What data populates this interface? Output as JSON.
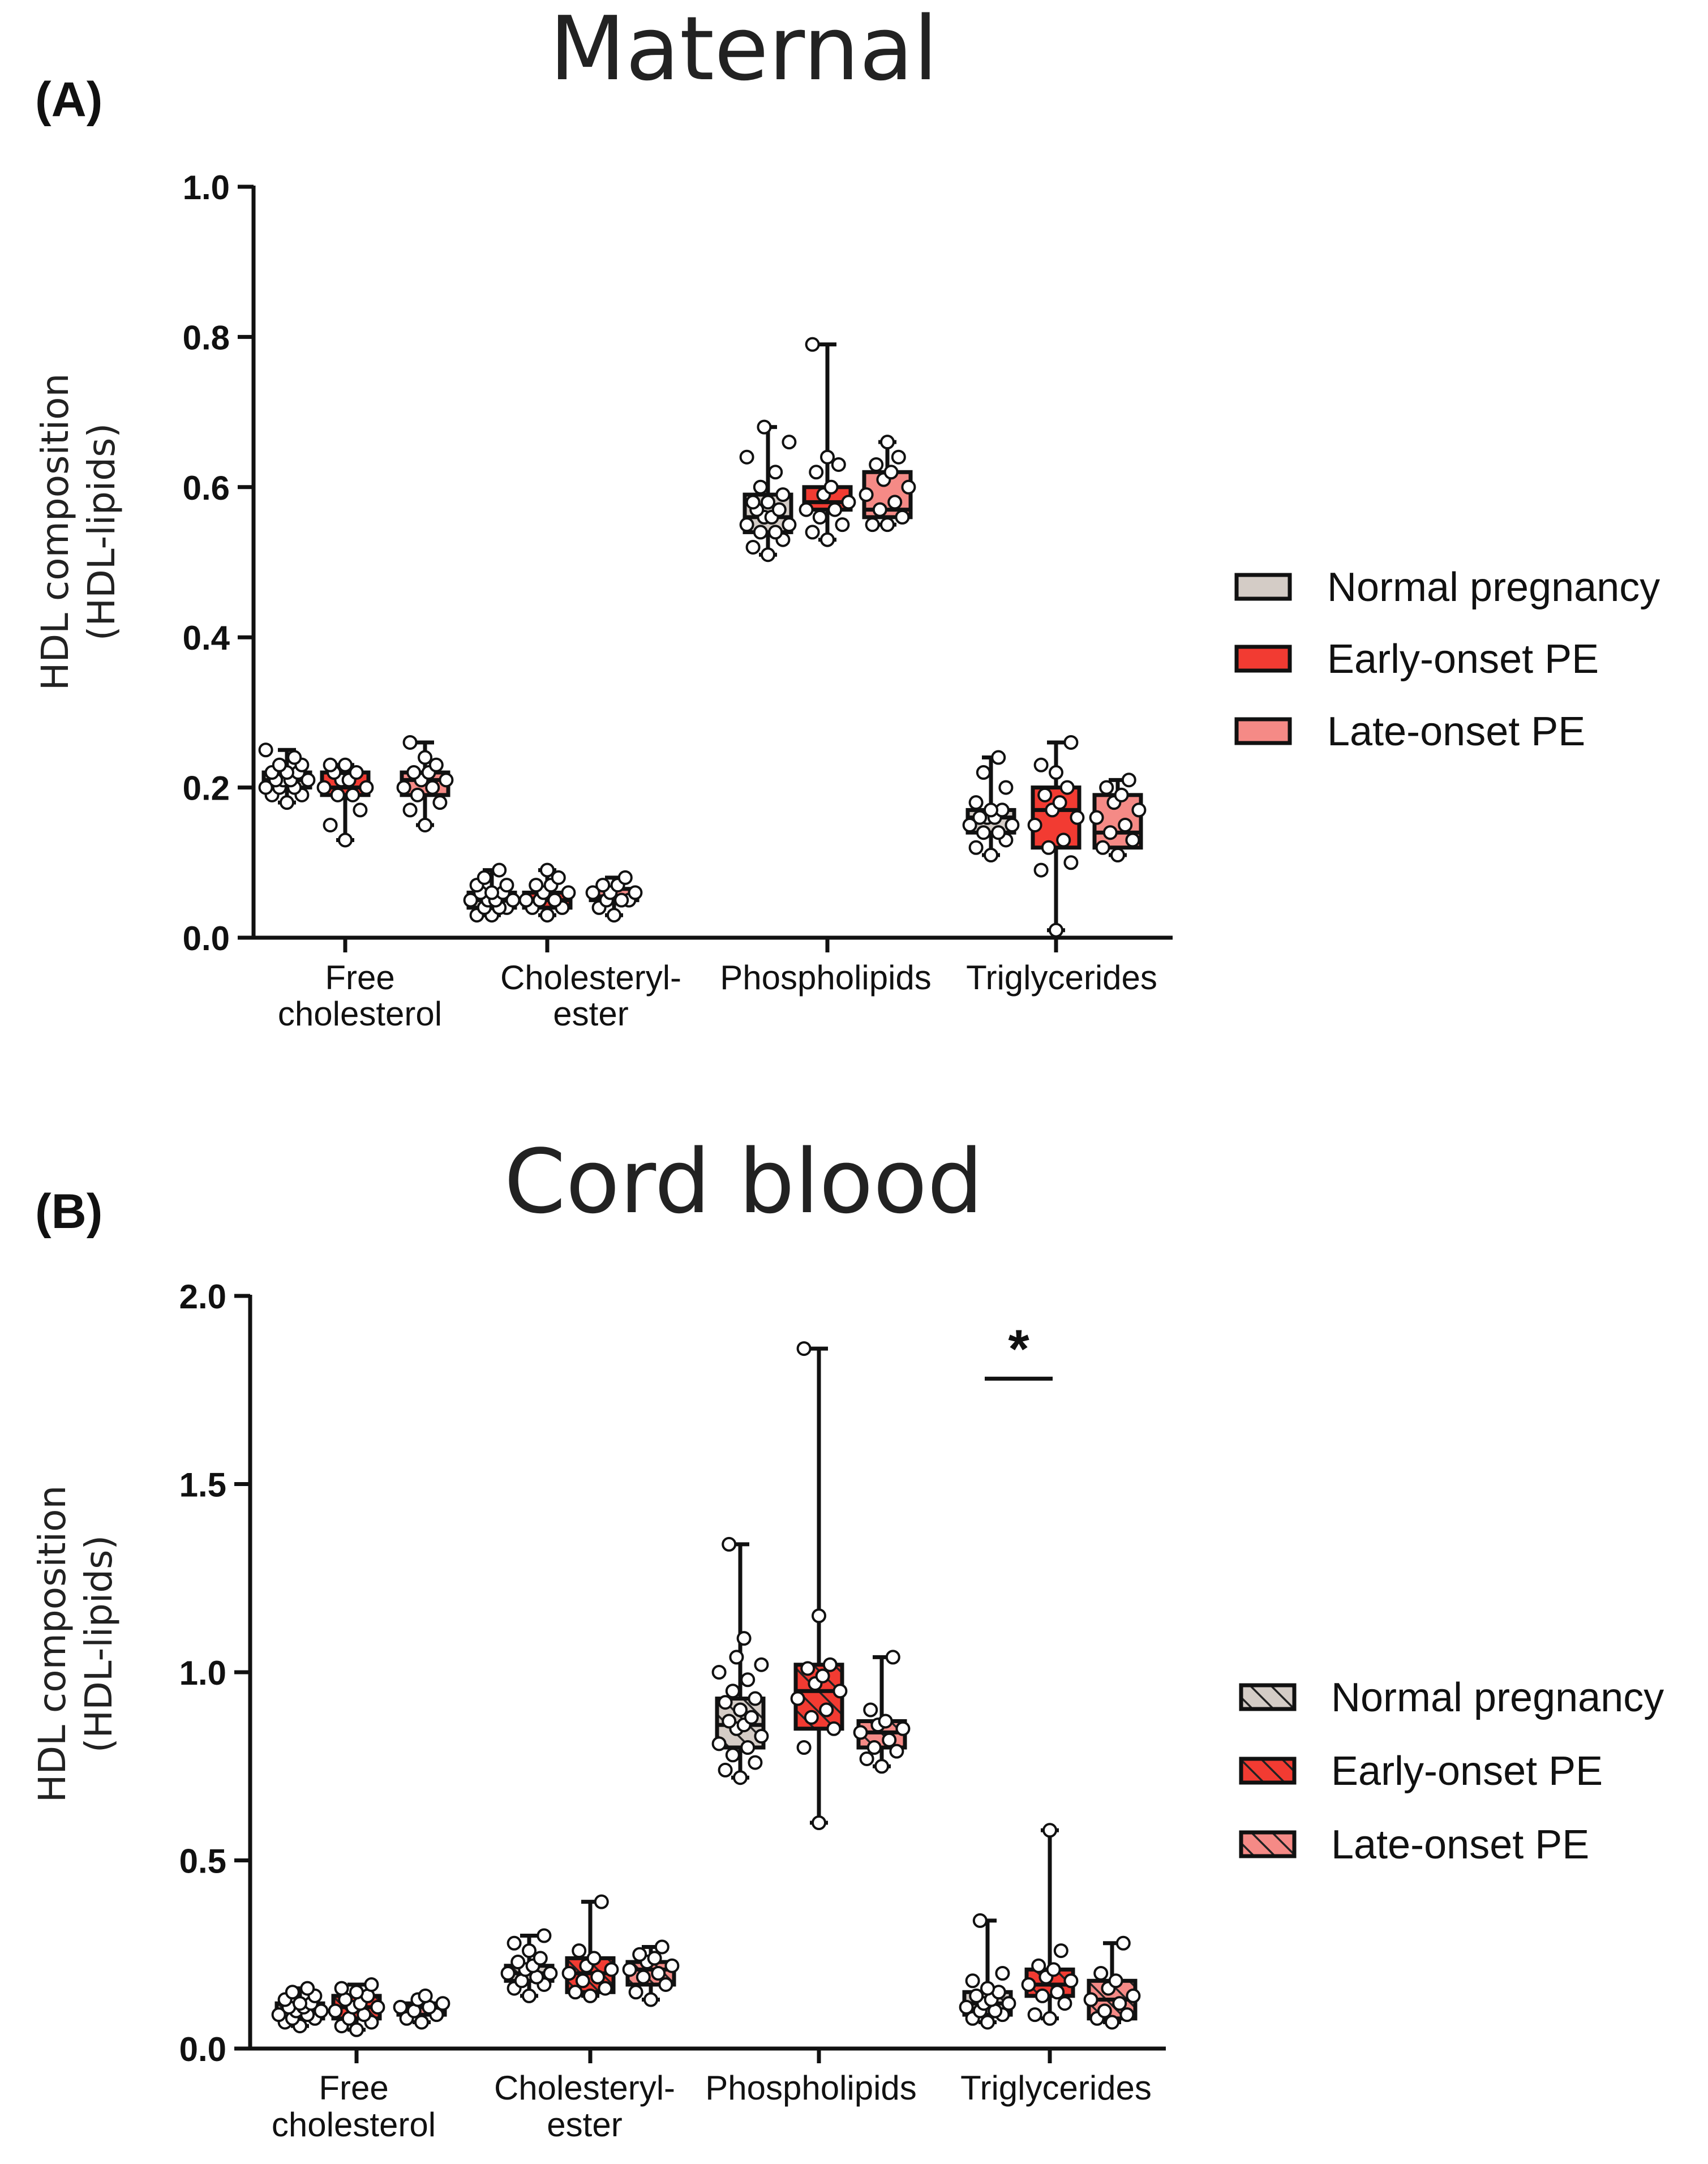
{
  "colors": {
    "normal": "#d4ccc6",
    "early": "#f23b32",
    "late": "#f58a86",
    "ink": "#111111"
  },
  "legend_icons": {
    "A": [
      "solid",
      "solid",
      "solid"
    ],
    "B": [
      "hatched",
      "hatched",
      "hatched"
    ]
  },
  "chart_data": [
    {
      "type": "box",
      "panel_label": "(A)",
      "title": "Maternal",
      "ylabel_line1": "HDL composition",
      "ylabel_line2": "(HDL-lipids)",
      "ylim": [
        0,
        1.0
      ],
      "yticks": [
        "0.0",
        "0.2",
        "0.4",
        "0.6",
        "0.8",
        "1.0"
      ],
      "yticks_values": [
        0,
        0.2,
        0.4,
        0.6,
        0.8,
        1.0
      ],
      "categories": [
        {
          "line1": "Free",
          "line2": "cholesterol"
        },
        {
          "line1": "Cholesteryl-",
          "line2": "ester"
        },
        {
          "line1": "Phospholipids",
          "line2": ""
        },
        {
          "line1": "Triglycerides",
          "line2": ""
        }
      ],
      "legend": [
        "Normal pregnancy",
        "Early-onset PE",
        "Late-onset PE"
      ],
      "hatched": false,
      "significance": null,
      "series": [
        {
          "name": "Normal pregnancy",
          "boxes": [
            {
              "min": 0.18,
              "q1": 0.2,
              "median": 0.21,
              "q3": 0.22,
              "max": 0.25,
              "points": [
                0.18,
                0.19,
                0.19,
                0.2,
                0.2,
                0.2,
                0.21,
                0.21,
                0.21,
                0.21,
                0.22,
                0.22,
                0.22,
                0.23,
                0.23,
                0.24,
                0.25
              ]
            },
            {
              "min": 0.03,
              "q1": 0.04,
              "median": 0.05,
              "q3": 0.06,
              "max": 0.09,
              "points": [
                0.03,
                0.03,
                0.04,
                0.04,
                0.04,
                0.05,
                0.05,
                0.05,
                0.05,
                0.06,
                0.06,
                0.06,
                0.07,
                0.07,
                0.08,
                0.09
              ]
            },
            {
              "min": 0.51,
              "q1": 0.54,
              "median": 0.56,
              "q3": 0.59,
              "max": 0.68,
              "points": [
                0.51,
                0.52,
                0.53,
                0.54,
                0.54,
                0.55,
                0.55,
                0.56,
                0.56,
                0.57,
                0.57,
                0.58,
                0.58,
                0.59,
                0.6,
                0.62,
                0.64,
                0.66,
                0.68
              ]
            },
            {
              "min": 0.11,
              "q1": 0.14,
              "median": 0.16,
              "q3": 0.17,
              "max": 0.24,
              "points": [
                0.11,
                0.12,
                0.13,
                0.14,
                0.14,
                0.15,
                0.15,
                0.16,
                0.16,
                0.16,
                0.17,
                0.17,
                0.18,
                0.2,
                0.22,
                0.24
              ]
            }
          ]
        },
        {
          "name": "Early-onset PE",
          "boxes": [
            {
              "min": 0.13,
              "q1": 0.19,
              "median": 0.2,
              "q3": 0.22,
              "max": 0.23,
              "points": [
                0.13,
                0.15,
                0.17,
                0.19,
                0.19,
                0.2,
                0.2,
                0.21,
                0.21,
                0.22,
                0.22,
                0.23,
                0.23
              ]
            },
            {
              "min": 0.03,
              "q1": 0.04,
              "median": 0.05,
              "q3": 0.06,
              "max": 0.09,
              "points": [
                0.03,
                0.04,
                0.04,
                0.05,
                0.05,
                0.05,
                0.06,
                0.06,
                0.07,
                0.07,
                0.08,
                0.09
              ]
            },
            {
              "min": 0.53,
              "q1": 0.57,
              "median": 0.58,
              "q3": 0.6,
              "max": 0.79,
              "points": [
                0.53,
                0.54,
                0.55,
                0.56,
                0.57,
                0.57,
                0.58,
                0.59,
                0.6,
                0.62,
                0.63,
                0.64,
                0.79
              ]
            },
            {
              "min": 0.01,
              "q1": 0.12,
              "median": 0.17,
              "q3": 0.2,
              "max": 0.26,
              "points": [
                0.01,
                0.09,
                0.1,
                0.12,
                0.13,
                0.15,
                0.16,
                0.17,
                0.18,
                0.19,
                0.2,
                0.22,
                0.23,
                0.26
              ]
            }
          ]
        },
        {
          "name": "Late-onset PE",
          "boxes": [
            {
              "min": 0.15,
              "q1": 0.19,
              "median": 0.21,
              "q3": 0.22,
              "max": 0.26,
              "points": [
                0.15,
                0.17,
                0.18,
                0.19,
                0.2,
                0.2,
                0.21,
                0.21,
                0.22,
                0.22,
                0.23,
                0.24,
                0.26
              ]
            },
            {
              "min": 0.03,
              "q1": 0.05,
              "median": 0.055,
              "q3": 0.065,
              "max": 0.08,
              "points": [
                0.03,
                0.04,
                0.05,
                0.05,
                0.05,
                0.06,
                0.06,
                0.06,
                0.07,
                0.07,
                0.08
              ]
            },
            {
              "min": 0.55,
              "q1": 0.56,
              "median": 0.57,
              "q3": 0.62,
              "max": 0.66,
              "points": [
                0.55,
                0.55,
                0.56,
                0.57,
                0.58,
                0.59,
                0.6,
                0.61,
                0.62,
                0.63,
                0.64,
                0.66
              ]
            },
            {
              "min": 0.11,
              "q1": 0.12,
              "median": 0.14,
              "q3": 0.19,
              "max": 0.21,
              "points": [
                0.11,
                0.12,
                0.13,
                0.14,
                0.15,
                0.16,
                0.17,
                0.18,
                0.19,
                0.2,
                0.21
              ]
            }
          ]
        }
      ]
    },
    {
      "type": "box",
      "panel_label": "(B)",
      "title": "Cord blood",
      "ylabel_line1": "HDL composition",
      "ylabel_line2": "(HDL-lipids)",
      "ylim": [
        0,
        2.0
      ],
      "yticks": [
        "0.0",
        "0.5",
        "1.0",
        "1.5",
        "2.0"
      ],
      "yticks_values": [
        0,
        0.5,
        1.0,
        1.5,
        2.0
      ],
      "categories": [
        {
          "line1": "Free",
          "line2": "cholesterol"
        },
        {
          "line1": "Cholesteryl-",
          "line2": "ester"
        },
        {
          "line1": "Phospholipids",
          "line2": ""
        },
        {
          "line1": "Triglycerides",
          "line2": ""
        }
      ],
      "legend": [
        "Normal pregnancy",
        "Early-onset PE",
        "Late-onset PE"
      ],
      "hatched": true,
      "significance": {
        "text": "*",
        "category": 3,
        "from_series": 0,
        "to_series": 1,
        "y": 1.78
      },
      "series": [
        {
          "name": "Normal pregnancy",
          "boxes": [
            {
              "min": 0.06,
              "q1": 0.08,
              "median": 0.1,
              "q3": 0.12,
              "max": 0.16,
              "points": [
                0.06,
                0.07,
                0.08,
                0.08,
                0.09,
                0.09,
                0.1,
                0.1,
                0.11,
                0.11,
                0.12,
                0.12,
                0.13,
                0.14,
                0.15,
                0.16
              ]
            },
            {
              "min": 0.14,
              "q1": 0.18,
              "median": 0.2,
              "q3": 0.22,
              "max": 0.3,
              "points": [
                0.14,
                0.16,
                0.17,
                0.18,
                0.19,
                0.2,
                0.2,
                0.21,
                0.22,
                0.23,
                0.24,
                0.26,
                0.28,
                0.3
              ]
            },
            {
              "min": 0.72,
              "q1": 0.8,
              "median": 0.86,
              "q3": 0.93,
              "max": 1.34,
              "points": [
                0.72,
                0.74,
                0.76,
                0.78,
                0.8,
                0.81,
                0.83,
                0.85,
                0.86,
                0.87,
                0.88,
                0.9,
                0.92,
                0.93,
                0.95,
                0.98,
                1.0,
                1.02,
                1.04,
                1.09,
                1.34
              ]
            },
            {
              "min": 0.07,
              "q1": 0.09,
              "median": 0.12,
              "q3": 0.15,
              "max": 0.34,
              "points": [
                0.07,
                0.08,
                0.09,
                0.1,
                0.1,
                0.11,
                0.12,
                0.12,
                0.13,
                0.14,
                0.15,
                0.16,
                0.18,
                0.2,
                0.34
              ]
            }
          ]
        },
        {
          "name": "Early-onset PE",
          "boxes": [
            {
              "min": 0.05,
              "q1": 0.08,
              "median": 0.11,
              "q3": 0.14,
              "max": 0.17,
              "points": [
                0.05,
                0.06,
                0.07,
                0.08,
                0.09,
                0.1,
                0.11,
                0.11,
                0.12,
                0.13,
                0.14,
                0.15,
                0.16,
                0.17
              ]
            },
            {
              "min": 0.14,
              "q1": 0.15,
              "median": 0.2,
              "q3": 0.24,
              "max": 0.39,
              "points": [
                0.14,
                0.15,
                0.16,
                0.18,
                0.19,
                0.2,
                0.21,
                0.22,
                0.24,
                0.26,
                0.39
              ]
            },
            {
              "min": 0.6,
              "q1": 0.85,
              "median": 0.95,
              "q3": 1.02,
              "max": 1.86,
              "points": [
                0.6,
                0.8,
                0.85,
                0.88,
                0.9,
                0.93,
                0.95,
                0.97,
                0.99,
                1.01,
                1.02,
                1.15,
                1.86
              ]
            },
            {
              "min": 0.08,
              "q1": 0.14,
              "median": 0.17,
              "q3": 0.21,
              "max": 0.58,
              "points": [
                0.08,
                0.09,
                0.12,
                0.14,
                0.15,
                0.17,
                0.18,
                0.19,
                0.21,
                0.22,
                0.26,
                0.58
              ]
            }
          ]
        },
        {
          "name": "Late-onset PE",
          "boxes": [
            {
              "min": 0.07,
              "q1": 0.09,
              "median": 0.11,
              "q3": 0.12,
              "max": 0.14,
              "points": [
                0.07,
                0.08,
                0.09,
                0.1,
                0.11,
                0.11,
                0.12,
                0.13,
                0.14
              ]
            },
            {
              "min": 0.13,
              "q1": 0.17,
              "median": 0.21,
              "q3": 0.23,
              "max": 0.27,
              "points": [
                0.13,
                0.15,
                0.17,
                0.19,
                0.2,
                0.21,
                0.22,
                0.23,
                0.24,
                0.25,
                0.27
              ]
            },
            {
              "min": 0.75,
              "q1": 0.8,
              "median": 0.84,
              "q3": 0.87,
              "max": 1.04,
              "points": [
                0.75,
                0.77,
                0.79,
                0.8,
                0.82,
                0.84,
                0.85,
                0.86,
                0.87,
                0.9,
                1.04
              ]
            },
            {
              "min": 0.07,
              "q1": 0.08,
              "median": 0.13,
              "q3": 0.18,
              "max": 0.28,
              "points": [
                0.07,
                0.08,
                0.09,
                0.1,
                0.12,
                0.13,
                0.14,
                0.16,
                0.18,
                0.2,
                0.28
              ]
            }
          ]
        }
      ]
    }
  ]
}
